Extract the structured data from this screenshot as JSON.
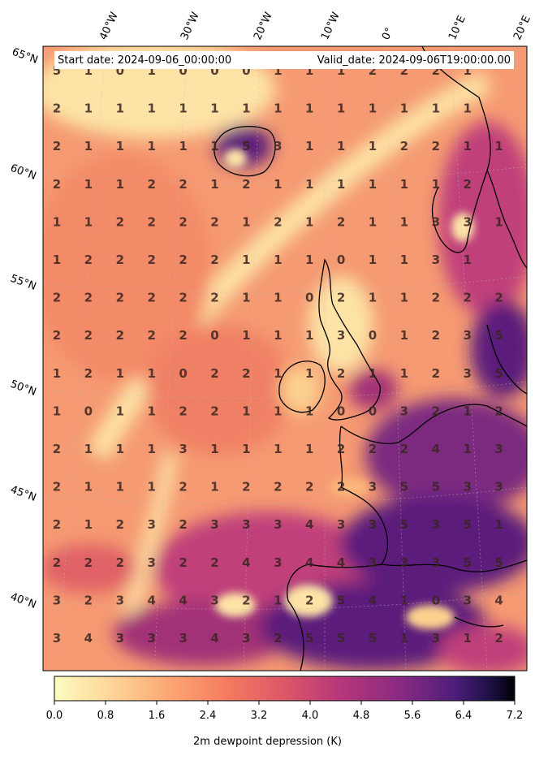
{
  "header": {
    "start_date": "Start date: 2024-09-06_00:00:00",
    "valid_date": "Valid_date: 2024-09-06T19:00:00.00"
  },
  "longitude_labels": [
    "40°W",
    "30°W",
    "20°W",
    "10°W",
    "0°",
    "10°E",
    "20°E"
  ],
  "latitude_labels": [
    "65°N",
    "60°N",
    "55°N",
    "50°N",
    "45°N",
    "40°N"
  ],
  "grid_values": [
    [
      5,
      1,
      0,
      1,
      0,
      0,
      0,
      1,
      1,
      1,
      2,
      2,
      2,
      1
    ],
    [
      2,
      1,
      1,
      1,
      1,
      1,
      1,
      1,
      1,
      1,
      1,
      1,
      1,
      1
    ],
    [
      2,
      1,
      1,
      1,
      1,
      1,
      5,
      3,
      1,
      1,
      1,
      2,
      2,
      1,
      1
    ],
    [
      2,
      1,
      1,
      2,
      2,
      1,
      2,
      1,
      1,
      1,
      1,
      1,
      1,
      2
    ],
    [
      1,
      1,
      2,
      2,
      2,
      2,
      1,
      2,
      1,
      2,
      1,
      1,
      3,
      3,
      1
    ],
    [
      1,
      2,
      2,
      2,
      2,
      2,
      1,
      1,
      1,
      0,
      1,
      1,
      3,
      1
    ],
    [
      2,
      2,
      2,
      2,
      2,
      2,
      1,
      1,
      0,
      2,
      1,
      1,
      2,
      2,
      2
    ],
    [
      2,
      2,
      2,
      2,
      2,
      0,
      1,
      1,
      1,
      3,
      0,
      1,
      2,
      3,
      5
    ],
    [
      1,
      2,
      1,
      1,
      0,
      2,
      2,
      1,
      1,
      2,
      1,
      1,
      2,
      3,
      5
    ],
    [
      1,
      0,
      1,
      1,
      2,
      2,
      1,
      1,
      1,
      0,
      0,
      3,
      2,
      1,
      2
    ],
    [
      2,
      1,
      1,
      1,
      3,
      1,
      1,
      1,
      1,
      2,
      2,
      2,
      4,
      1,
      3
    ],
    [
      2,
      1,
      1,
      1,
      2,
      1,
      2,
      2,
      2,
      2,
      3,
      5,
      5,
      3,
      3
    ],
    [
      2,
      1,
      2,
      3,
      2,
      3,
      3,
      3,
      4,
      3,
      3,
      5,
      3,
      5,
      1
    ],
    [
      2,
      2,
      2,
      3,
      2,
      2,
      4,
      3,
      4,
      4,
      3,
      3,
      3,
      5,
      5
    ],
    [
      3,
      2,
      3,
      4,
      4,
      3,
      2,
      1,
      2,
      5,
      4,
      1,
      0,
      3,
      4
    ],
    [
      3,
      4,
      3,
      3,
      3,
      4,
      3,
      2,
      5,
      5,
      5,
      1,
      3,
      1,
      2
    ]
  ],
  "colorbar": {
    "ticks": [
      "0.0",
      "0.8",
      "1.6",
      "2.4",
      "3.2",
      "4.0",
      "4.8",
      "5.6",
      "6.4",
      "7.2"
    ],
    "label": "2m dewpoint depression (K)",
    "colormap": "magma_r",
    "min": 0.0,
    "max": 7.2
  },
  "colors": {
    "low": "#fcf1b6",
    "mid_low": "#fbb67a",
    "mid": "#e8675f",
    "mid_high": "#a8326f",
    "high": "#5b1a7c",
    "max": "#000004"
  }
}
